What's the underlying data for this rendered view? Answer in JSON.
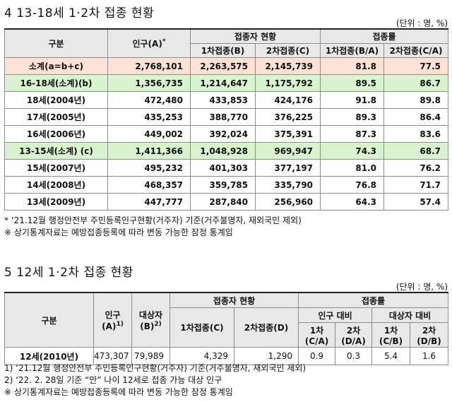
{
  "section4": {
    "title": "4  13-18세 1·2차 접종 현황",
    "unit": "(단위 : 명, %)",
    "headers": {
      "category": "구분",
      "population": "인구(A)",
      "population_mark": "*",
      "vaccinated": "접종자 현황",
      "dose1": "1차접종(B)",
      "dose2": "2차접종(C)",
      "rate": "접종률",
      "rate1": "1차접종(B/A)",
      "rate2": "2차접종(C/A)"
    },
    "rows": [
      {
        "label": "소계(a=b+c)",
        "pop": "2,768,101",
        "d1": "2,263,575",
        "d2": "2,145,739",
        "r1": "81.8",
        "r2": "77.5"
      },
      {
        "label": "16-18세(소계)(b)",
        "pop": "1,356,735",
        "d1": "1,214,647",
        "d2": "1,175,792",
        "r1": "89.5",
        "r2": "86.7"
      },
      {
        "label": "18세(2004년)",
        "pop": "472,480",
        "d1": "433,853",
        "d2": "424,176",
        "r1": "91.8",
        "r2": "89.8"
      },
      {
        "label": "17세(2005년)",
        "pop": "435,253",
        "d1": "388,770",
        "d2": "376,225",
        "r1": "89.3",
        "r2": "86.4"
      },
      {
        "label": "16세(2006년)",
        "pop": "449,002",
        "d1": "392,024",
        "d2": "375,391",
        "r1": "87.3",
        "r2": "83.6"
      },
      {
        "label": "13-15세(소계) (c)",
        "pop": "1,411,366",
        "d1": "1,048,928",
        "d2": "969,947",
        "r1": "74.3",
        "r2": "68.7"
      },
      {
        "label": "15세(2007년)",
        "pop": "495,232",
        "d1": "401,303",
        "d2": "377,197",
        "r1": "81.0",
        "r2": "76.2"
      },
      {
        "label": "14세(2008년)",
        "pop": "468,357",
        "d1": "359,785",
        "d2": "335,790",
        "r1": "76.8",
        "r2": "71.7"
      },
      {
        "label": "13세(2009년)",
        "pop": "447,777",
        "d1": "287,840",
        "d2": "256,960",
        "r1": "64.3",
        "r2": "57.4"
      }
    ],
    "notes": [
      " * ‘21.12월 행정안전부 주민등록인구현황(거주자) 기준(거주불명자, 재외국민 제외)",
      "※ 상기통계자료는 예방접종등록에 따라 변동 가능한 잠정 통계임"
    ]
  },
  "section5": {
    "title": "5  12세 1·2차 접종 현황",
    "unit": "(단위 : 명, %)",
    "headers": {
      "category": "구분",
      "population": "인구",
      "population_sub": "(A)",
      "population_mark": "1)",
      "target": "대상자",
      "target_sub": "(B)",
      "target_mark": "2)",
      "vaccinated": "접종자 현황",
      "dose1": "1차접종(C)",
      "dose2": "2차접종(D)",
      "rate": "접종률",
      "pop_based": "인구 대비",
      "target_based": "대상자 대비",
      "r1_pop": "1차",
      "r1_pop_sub": "(C/A)",
      "r2_pop": "2차",
      "r2_pop_sub": "(D/A)",
      "r1_tgt": "1차",
      "r1_tgt_sub": "(C/B)",
      "r2_tgt": "2차",
      "r2_tgt_sub": "(D/B)"
    },
    "row": {
      "label": "12세(2010년)",
      "pop": "473,307",
      "target": "79,989",
      "d1": "4,329",
      "d2": "1,290",
      "r1p": "0.9",
      "r2p": "0.3",
      "r1t": "5.4",
      "r2t": "1.6"
    },
    "notes": [
      "1) ‘21.12월 행정안전부 주민등록인구현황(거주자) 기준(거주불명자, 재외국민 제외)",
      "2) ‘22. 2. 28일 기준 “만” 나이 12세로 접종 가능 대상 인구",
      "※ 상기통계자료는 예방접종등록에 따라 변동 가능한 잠정 통계임"
    ]
  }
}
